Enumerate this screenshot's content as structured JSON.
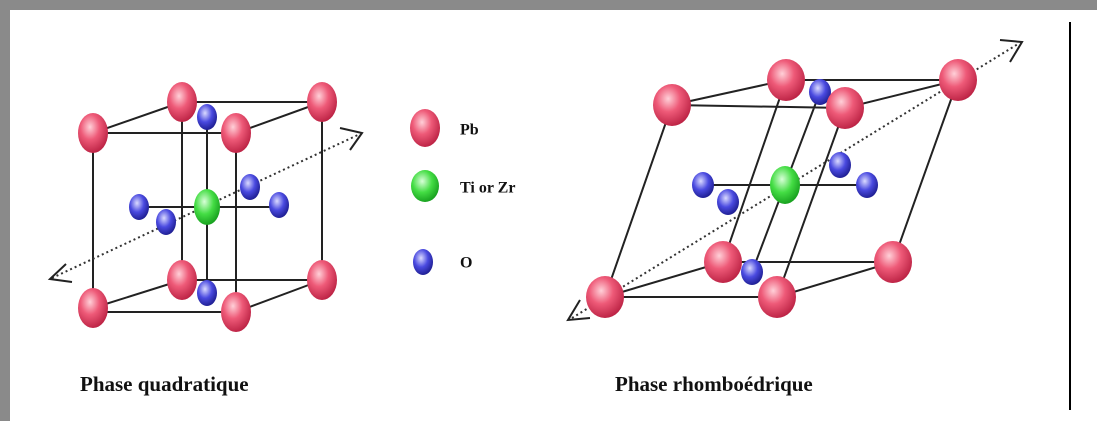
{
  "legend": [
    {
      "label": "Pb"
    },
    {
      "label": "Ti or Zr"
    },
    {
      "label": "O"
    }
  ],
  "captions": [
    "Phase quadratique",
    "Phase rhomboédrique"
  ]
}
